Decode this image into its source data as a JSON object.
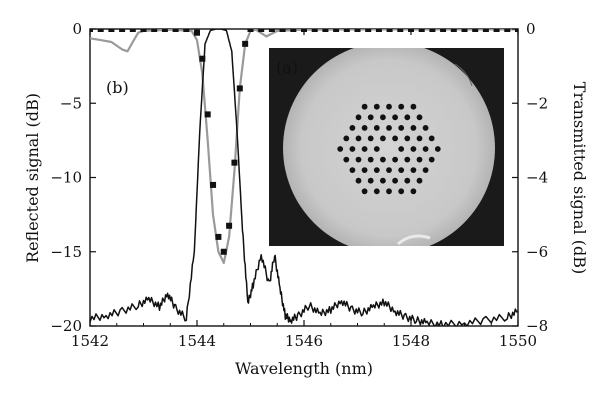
{
  "chart_data": {
    "type": "line",
    "xlabel": "Wavelength (nm)",
    "ylabel_left": "Reflected signal (dB)",
    "ylabel_right": "Transmitted signal (dB)",
    "xlim": [
      1542,
      1550
    ],
    "ylim_left": [
      -20,
      0
    ],
    "ylim_right": [
      -8,
      0
    ],
    "x_ticks": [
      1542,
      1544,
      1546,
      1548,
      1550
    ],
    "x_tick_labels": [
      "1542",
      "1544",
      "1546",
      "1548",
      "1550"
    ],
    "y_left_ticks": [
      0,
      -5,
      -10,
      -15,
      -20
    ],
    "y_left_tick_labels": [
      "0",
      "−5",
      "−10",
      "−15",
      "−20"
    ],
    "y_right_ticks": [
      0,
      -2,
      -4,
      -6,
      -8
    ],
    "y_right_tick_labels": [
      "0",
      "−2",
      "−4",
      "−6",
      "−8"
    ],
    "grid": false,
    "panel_labels": [
      "(a)",
      "(b)"
    ],
    "series": [
      {
        "axis": "left",
        "style": "solid black",
        "color": "#111111",
        "x": [
          1542.0,
          1542.3,
          1542.6,
          1542.9,
          1543.1,
          1543.3,
          1543.45,
          1543.6,
          1543.8,
          1543.95,
          1544.05,
          1544.15,
          1544.25,
          1544.35,
          1544.45,
          1544.55,
          1544.65,
          1544.75,
          1544.85,
          1544.95,
          1545.05,
          1545.2,
          1545.35,
          1545.45,
          1545.55,
          1545.65,
          1545.75,
          1545.9,
          1546.1,
          1546.3,
          1546.5,
          1546.7,
          1546.9,
          1547.1,
          1547.3,
          1547.5,
          1547.7,
          1547.9,
          1548.1,
          1548.3,
          1548.6,
          1549.0,
          1549.4,
          1549.8,
          1550.0
        ],
        "y": [
          -19.5,
          -19.3,
          -19.0,
          -18.6,
          -18.2,
          -18.7,
          -17.8,
          -18.8,
          -19.5,
          -15.0,
          -7.0,
          -1.0,
          -0.1,
          0.0,
          0.0,
          -0.1,
          -1.5,
          -7.0,
          -13.5,
          -18.5,
          -17.2,
          -15.2,
          -17.2,
          -15.2,
          -17.5,
          -19.3,
          -19.6,
          -19.3,
          -18.6,
          -19.2,
          -18.9,
          -18.3,
          -18.9,
          -19.1,
          -18.7,
          -18.4,
          -19.0,
          -19.4,
          -19.6,
          -19.8,
          -19.9,
          -19.8,
          -19.6,
          -19.4,
          -19.0
        ]
      },
      {
        "axis": "right",
        "style": "gray line",
        "color": "#9a9a9a",
        "x": [
          1542.0,
          1542.2,
          1542.4,
          1542.6,
          1542.7,
          1542.8,
          1542.9,
          1543.0,
          1543.5,
          1543.9,
          1544.0,
          1544.1,
          1544.2,
          1544.3,
          1544.4,
          1544.5,
          1544.6,
          1544.7,
          1544.8,
          1544.9,
          1545.0,
          1545.1,
          1545.3,
          1545.5,
          1546.0,
          1547.0,
          1548.0,
          1549.0,
          1550.0
        ],
        "y": [
          -0.25,
          -0.3,
          -0.35,
          -0.55,
          -0.6,
          -0.35,
          -0.1,
          -0.05,
          -0.02,
          -0.05,
          -0.3,
          -1.2,
          -3.0,
          -5.0,
          -6.0,
          -6.3,
          -5.6,
          -3.8,
          -1.6,
          -0.4,
          -0.05,
          -0.02,
          -0.2,
          -0.05,
          -0.02,
          -0.01,
          -0.01,
          -0.01,
          -0.01
        ]
      },
      {
        "axis": "right",
        "style": "black square markers",
        "color": "#111111",
        "x": [
          1542.0,
          1542.2,
          1542.4,
          1542.6,
          1542.8,
          1543.0,
          1543.2,
          1543.4,
          1543.6,
          1543.8,
          1544.0,
          1544.1,
          1544.2,
          1544.3,
          1544.4,
          1544.5,
          1544.6,
          1544.7,
          1544.8,
          1544.9,
          1545.0,
          1545.2,
          1545.4,
          1545.6,
          1545.8,
          1546.0,
          1546.2,
          1546.4,
          1546.6,
          1546.8,
          1547.0,
          1547.2,
          1547.4,
          1547.6,
          1547.8,
          1548.0,
          1548.2,
          1548.4,
          1548.6,
          1548.8,
          1549.0,
          1549.2,
          1549.4,
          1549.6,
          1549.8,
          1550.0
        ],
        "y": [
          0,
          0,
          0,
          0,
          0,
          0,
          0,
          0,
          0,
          0,
          -0.1,
          -0.8,
          -2.3,
          -4.2,
          -5.6,
          -6.0,
          -5.3,
          -3.6,
          -1.6,
          -0.4,
          0,
          0,
          0,
          0,
          0,
          0,
          0,
          0,
          0,
          0,
          0,
          0,
          0,
          0,
          0,
          0,
          0,
          0,
          0,
          0,
          0,
          0,
          0,
          0,
          0,
          0
        ]
      }
    ],
    "inset": {
      "label": "(a)",
      "description_visible": false
    }
  }
}
